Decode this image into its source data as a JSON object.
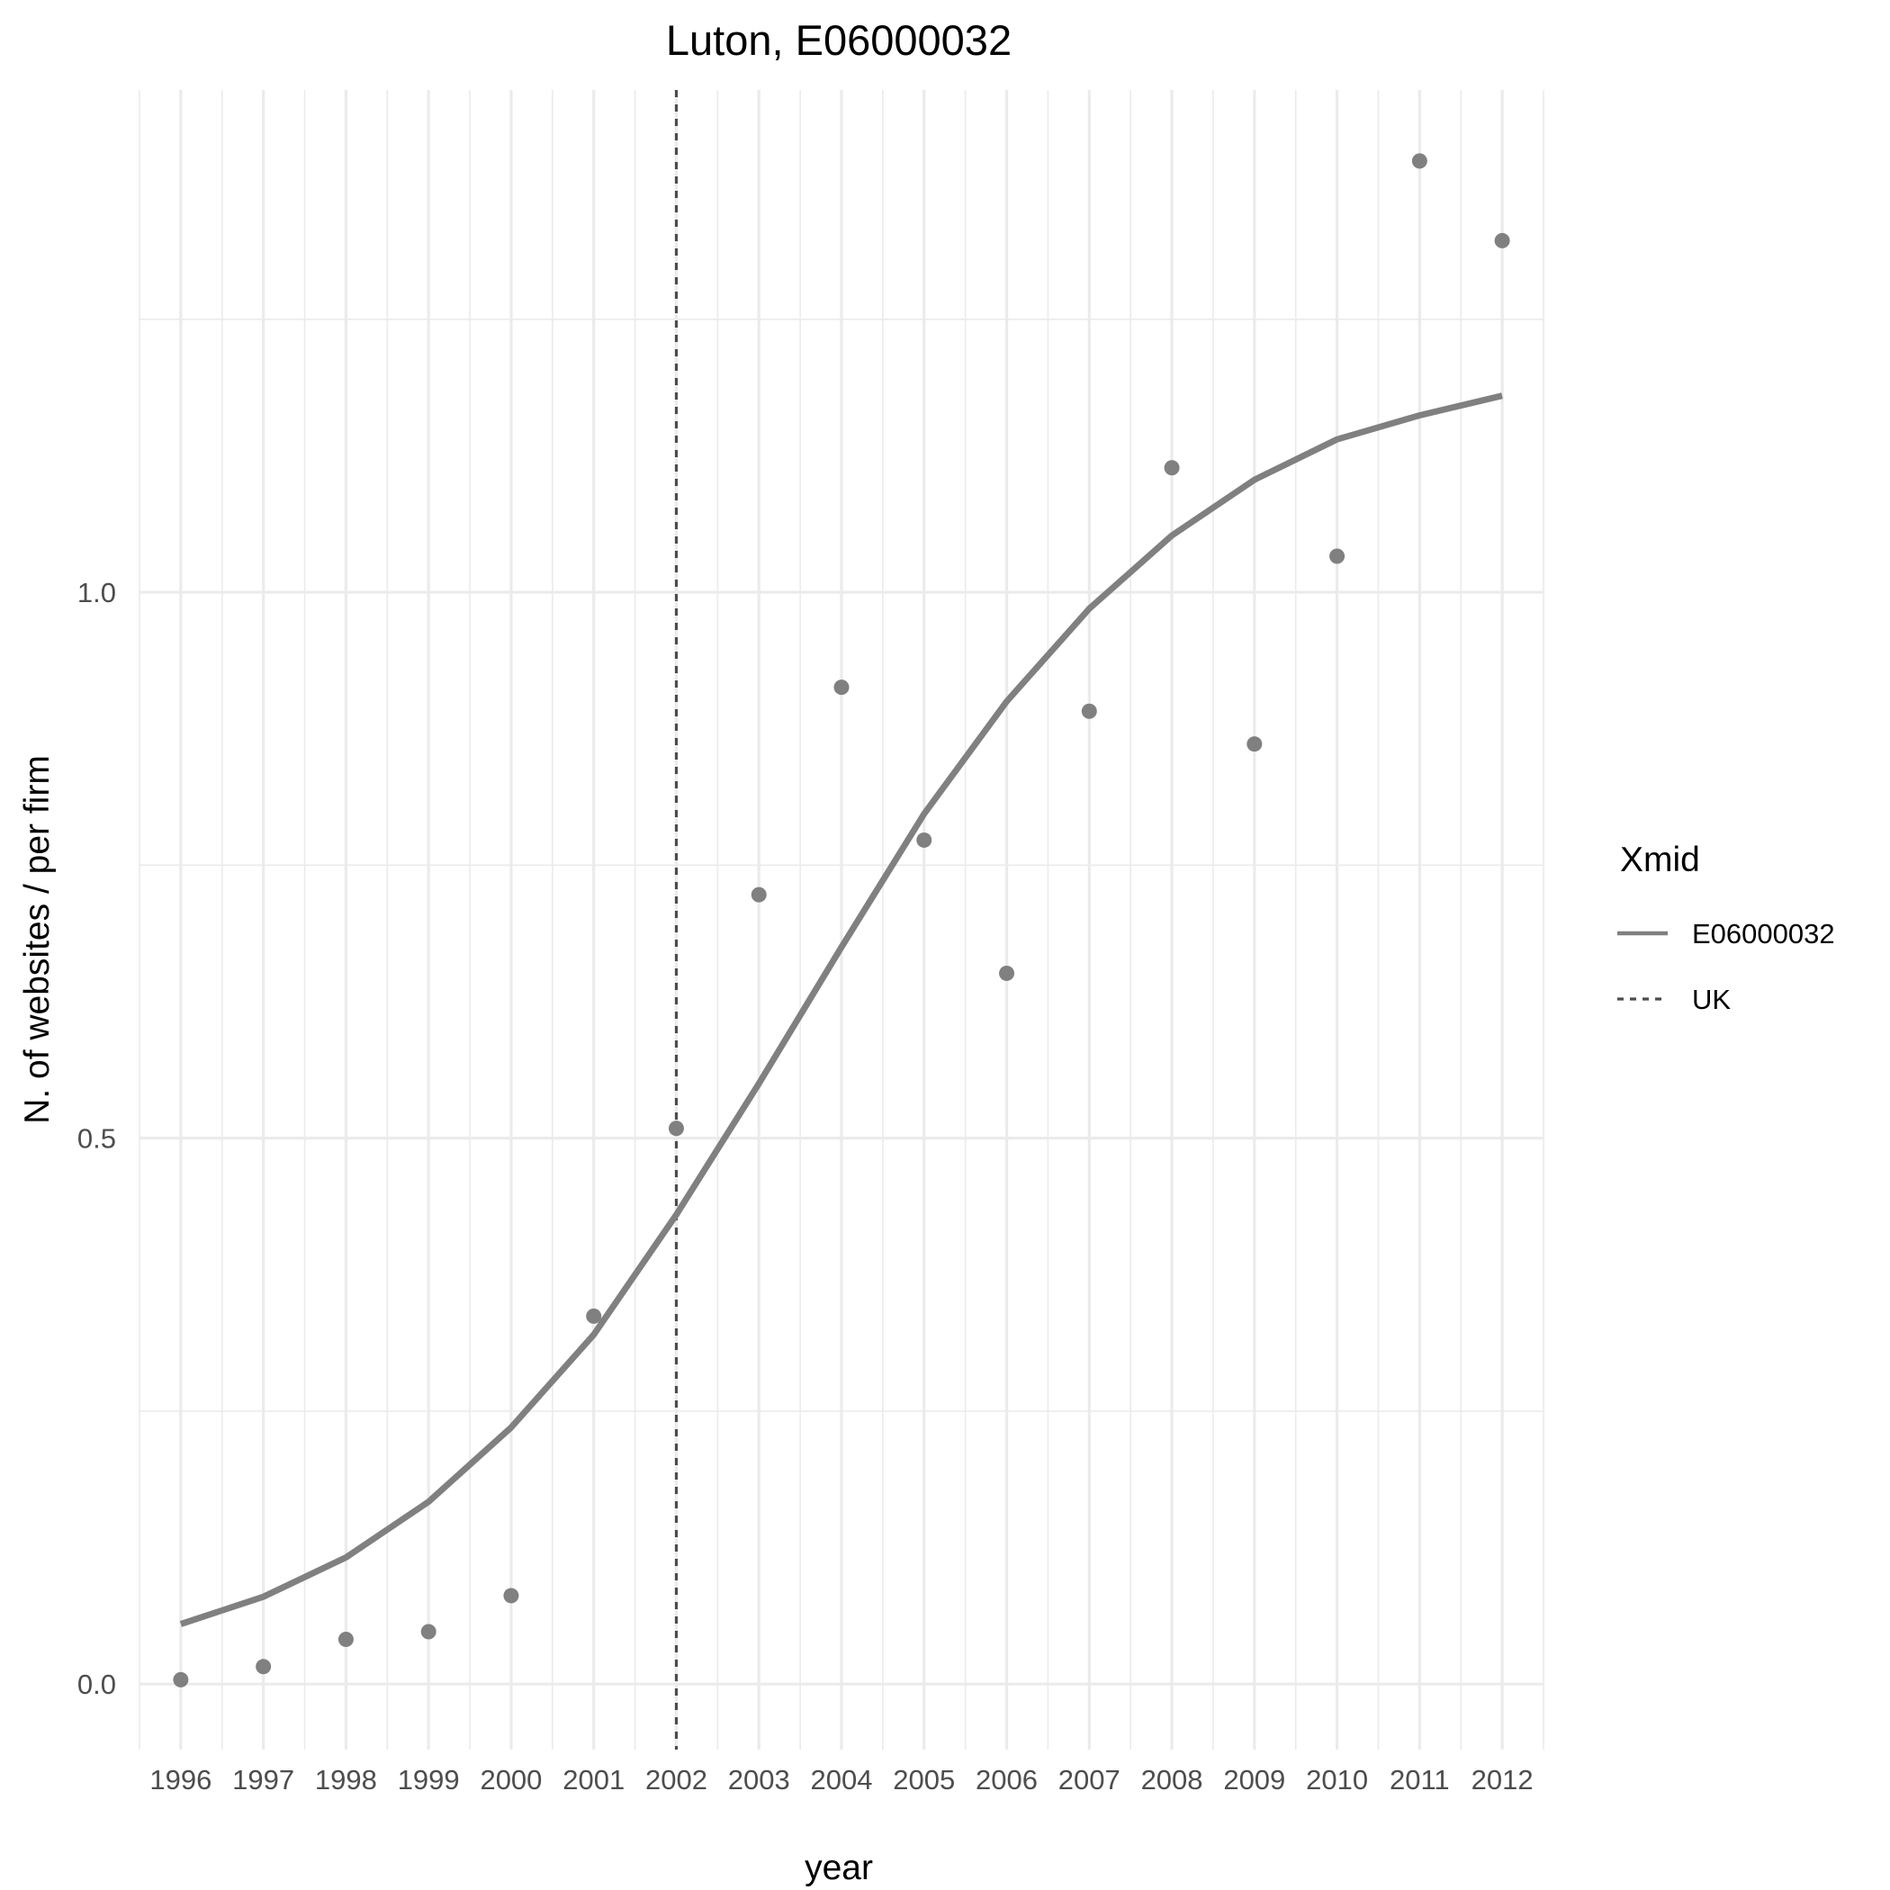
{
  "chart_data": {
    "type": "line",
    "title": "Luton, E06000032",
    "xlabel": "year",
    "ylabel": "N. of websites / per firm",
    "x": [
      1996,
      1997,
      1998,
      1999,
      2000,
      2001,
      2002,
      2003,
      2004,
      2005,
      2006,
      2007,
      2008,
      2009,
      2010,
      2011,
      2012
    ],
    "x_tick_labels": [
      "1996",
      "1997",
      "1998",
      "1999",
      "2000",
      "2001",
      "2002",
      "2003",
      "2004",
      "2005",
      "2006",
      "2007",
      "2008",
      "2009",
      "2010",
      "2011",
      "2012"
    ],
    "y_ticks": [
      0.0,
      0.5,
      1.0
    ],
    "y_tick_labels": [
      "0.0",
      "0.5",
      "1.0"
    ],
    "xlim": [
      1995.5,
      2012.5
    ],
    "ylim": [
      -0.06,
      1.46
    ],
    "grid": true,
    "series": [
      {
        "name": "E06000032",
        "kind": "line",
        "color": "#808080",
        "values": [
          0.055,
          0.08,
          0.116,
          0.167,
          0.235,
          0.32,
          0.43,
          0.55,
          0.675,
          0.797,
          0.9,
          0.985,
          1.052,
          1.103,
          1.14,
          1.162,
          1.18
        ]
      },
      {
        "kind": "scatter",
        "color": "#808080",
        "values": [
          0.004,
          0.016,
          0.041,
          0.048,
          0.081,
          0.337,
          0.509,
          0.723,
          0.913,
          0.773,
          0.651,
          0.891,
          1.114,
          0.861,
          1.033,
          1.395,
          1.322
        ]
      }
    ],
    "reference_lines": [
      {
        "name": "UK",
        "orientation": "vertical",
        "x": 2002,
        "style": "dashed",
        "color": "#4d4d4d"
      }
    ],
    "legend": {
      "title": "Xmid",
      "position": "right",
      "entries": [
        {
          "label": "E06000032",
          "style": "solid",
          "color": "#808080"
        },
        {
          "label": "UK",
          "style": "dashed",
          "color": "#4d4d4d"
        }
      ]
    }
  }
}
